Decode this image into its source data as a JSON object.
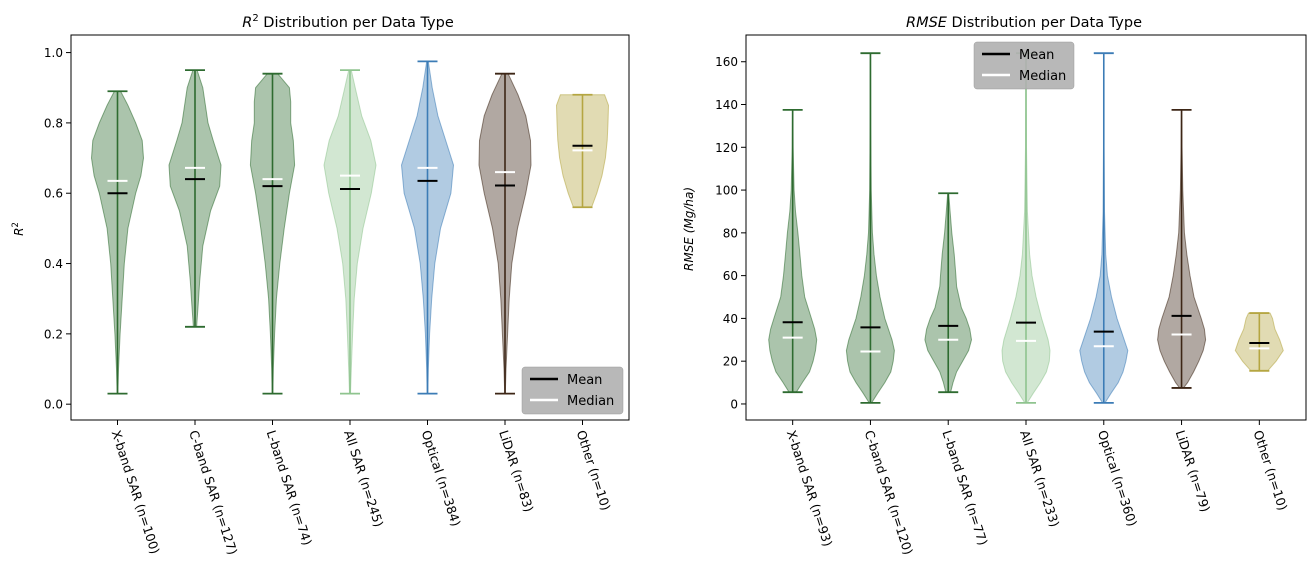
{
  "chart_data": [
    {
      "type": "violin",
      "title": "R² Distribution per Data Type",
      "title_prefix": "R",
      "title_sup": "2",
      "title_suffix": " Distribution per Data Type",
      "ylabel": "R²",
      "ylabel_main": "R",
      "ylabel_sup": "2",
      "ylim": [
        -0.045,
        1.05
      ],
      "yticks": [
        "0.0",
        "0.2",
        "0.4",
        "0.6",
        "0.8",
        "1.0"
      ],
      "legend": {
        "placement": "bottom-right",
        "entries": [
          "Mean",
          "Median"
        ]
      },
      "categories": [
        "X-band SAR (n=100)",
        "C-band SAR (n=127)",
        "L-band SAR (n=74)",
        "All SAR (n=245)",
        "Optical (n=384)",
        "LiDAR (n=83)",
        "Other (n=10)"
      ],
      "series": [
        {
          "color": "#2e6b30",
          "min": 0.03,
          "max": 0.89,
          "mean": 0.6,
          "median": 0.635,
          "profile": [
            [
              0.03,
              0.01
            ],
            [
              0.1,
              0.04
            ],
            [
              0.2,
              0.1
            ],
            [
              0.3,
              0.18
            ],
            [
              0.4,
              0.26
            ],
            [
              0.5,
              0.4
            ],
            [
              0.6,
              0.7
            ],
            [
              0.65,
              0.9
            ],
            [
              0.7,
              1.0
            ],
            [
              0.75,
              0.95
            ],
            [
              0.8,
              0.7
            ],
            [
              0.85,
              0.4
            ],
            [
              0.89,
              0.12
            ]
          ]
        },
        {
          "color": "#2e6b30",
          "min": 0.22,
          "max": 0.95,
          "mean": 0.64,
          "median": 0.672,
          "profile": [
            [
              0.22,
              0.06
            ],
            [
              0.28,
              0.12
            ],
            [
              0.35,
              0.18
            ],
            [
              0.45,
              0.3
            ],
            [
              0.55,
              0.6
            ],
            [
              0.62,
              0.95
            ],
            [
              0.68,
              1.0
            ],
            [
              0.75,
              0.7
            ],
            [
              0.8,
              0.5
            ],
            [
              0.85,
              0.4
            ],
            [
              0.9,
              0.3
            ],
            [
              0.95,
              0.08
            ]
          ]
        },
        {
          "color": "#2e6b30",
          "min": 0.03,
          "max": 0.94,
          "mean": 0.62,
          "median": 0.64,
          "profile": [
            [
              0.03,
              0.01
            ],
            [
              0.1,
              0.03
            ],
            [
              0.2,
              0.08
            ],
            [
              0.3,
              0.15
            ],
            [
              0.4,
              0.28
            ],
            [
              0.5,
              0.45
            ],
            [
              0.6,
              0.65
            ],
            [
              0.68,
              0.85
            ],
            [
              0.75,
              0.8
            ],
            [
              0.8,
              0.7
            ],
            [
              0.86,
              0.7
            ],
            [
              0.9,
              0.65
            ],
            [
              0.94,
              0.2
            ]
          ]
        },
        {
          "color": "#8fc48f",
          "min": 0.03,
          "max": 0.95,
          "mean": 0.612,
          "median": 0.65,
          "profile": [
            [
              0.03,
              0.02
            ],
            [
              0.1,
              0.05
            ],
            [
              0.2,
              0.1
            ],
            [
              0.3,
              0.16
            ],
            [
              0.4,
              0.28
            ],
            [
              0.5,
              0.5
            ],
            [
              0.6,
              0.82
            ],
            [
              0.68,
              1.0
            ],
            [
              0.75,
              0.8
            ],
            [
              0.82,
              0.45
            ],
            [
              0.9,
              0.2
            ],
            [
              0.95,
              0.05
            ]
          ]
        },
        {
          "color": "#3c7cb6",
          "min": 0.03,
          "max": 0.975,
          "mean": 0.635,
          "median": 0.672,
          "profile": [
            [
              0.03,
              0.01
            ],
            [
              0.1,
              0.03
            ],
            [
              0.2,
              0.08
            ],
            [
              0.3,
              0.16
            ],
            [
              0.4,
              0.28
            ],
            [
              0.5,
              0.5
            ],
            [
              0.6,
              0.9
            ],
            [
              0.68,
              1.0
            ],
            [
              0.75,
              0.7
            ],
            [
              0.82,
              0.4
            ],
            [
              0.9,
              0.18
            ],
            [
              0.975,
              0.03
            ]
          ]
        },
        {
          "color": "#3d2616",
          "min": 0.03,
          "max": 0.94,
          "mean": 0.622,
          "median": 0.66,
          "profile": [
            [
              0.03,
              0.01
            ],
            [
              0.1,
              0.04
            ],
            [
              0.2,
              0.1
            ],
            [
              0.3,
              0.16
            ],
            [
              0.4,
              0.26
            ],
            [
              0.5,
              0.48
            ],
            [
              0.6,
              0.8
            ],
            [
              0.68,
              1.0
            ],
            [
              0.75,
              0.98
            ],
            [
              0.82,
              0.8
            ],
            [
              0.88,
              0.5
            ],
            [
              0.94,
              0.12
            ]
          ]
        },
        {
          "color": "#b5a642",
          "min": 0.56,
          "max": 0.88,
          "mean": 0.735,
          "median": 0.722,
          "profile": [
            [
              0.56,
              0.35
            ],
            [
              0.6,
              0.55
            ],
            [
              0.65,
              0.75
            ],
            [
              0.7,
              0.88
            ],
            [
              0.75,
              0.95
            ],
            [
              0.8,
              0.98
            ],
            [
              0.85,
              1.0
            ],
            [
              0.88,
              0.85
            ]
          ]
        }
      ]
    },
    {
      "type": "violin",
      "title": "RMSE Distribution per Data Type",
      "title_italic": "RMSE",
      "title_suffix": " Distribution per Data Type",
      "ylabel": "RMSE (Mg/ha)",
      "ylim": [
        -7.5,
        172.5
      ],
      "yticks": [
        "0",
        "20",
        "40",
        "60",
        "80",
        "100",
        "120",
        "140",
        "160"
      ],
      "legend": {
        "placement": "top-center",
        "entries": [
          "Mean",
          "Median"
        ]
      },
      "categories": [
        "X-band SAR (n=93)",
        "C-band SAR (n=120)",
        "L-band SAR (n=77)",
        "All SAR (n=233)",
        "Optical (n=360)",
        "LiDAR (n=79)",
        "Other (n=10)"
      ],
      "series": [
        {
          "color": "#2e6b30",
          "min": 5.5,
          "max": 137.5,
          "mean": 38.2,
          "median": 31.0,
          "profile": [
            [
              5.5,
              0.15
            ],
            [
              10,
              0.4
            ],
            [
              15,
              0.7
            ],
            [
              20,
              0.85
            ],
            [
              25,
              0.95
            ],
            [
              30,
              1.0
            ],
            [
              35,
              0.92
            ],
            [
              40,
              0.78
            ],
            [
              50,
              0.5
            ],
            [
              60,
              0.38
            ],
            [
              70,
              0.3
            ],
            [
              80,
              0.22
            ],
            [
              90,
              0.12
            ],
            [
              100,
              0.06
            ],
            [
              120,
              0.02
            ],
            [
              137.5,
              0.01
            ]
          ]
        },
        {
          "color": "#2e6b30",
          "min": 0.5,
          "max": 164.0,
          "mean": 35.8,
          "median": 24.5,
          "profile": [
            [
              0.5,
              0.05
            ],
            [
              5,
              0.3
            ],
            [
              10,
              0.6
            ],
            [
              15,
              0.85
            ],
            [
              20,
              0.95
            ],
            [
              25,
              1.0
            ],
            [
              30,
              0.9
            ],
            [
              40,
              0.6
            ],
            [
              50,
              0.4
            ],
            [
              60,
              0.25
            ],
            [
              70,
              0.15
            ],
            [
              80,
              0.08
            ],
            [
              100,
              0.03
            ],
            [
              130,
              0.01
            ],
            [
              164,
              0.005
            ]
          ]
        },
        {
          "color": "#2e6b30",
          "min": 5.5,
          "max": 98.5,
          "mean": 36.5,
          "median": 30.0,
          "profile": [
            [
              5.5,
              0.1
            ],
            [
              10,
              0.2
            ],
            [
              15,
              0.35
            ],
            [
              20,
              0.6
            ],
            [
              25,
              0.85
            ],
            [
              30,
              0.97
            ],
            [
              35,
              0.9
            ],
            [
              40,
              0.75
            ],
            [
              45,
              0.55
            ],
            [
              55,
              0.35
            ],
            [
              60,
              0.32
            ],
            [
              70,
              0.25
            ],
            [
              80,
              0.15
            ],
            [
              90,
              0.08
            ],
            [
              98.5,
              0.02
            ]
          ]
        },
        {
          "color": "#8fc48f",
          "min": 0.5,
          "max": 164.0,
          "mean": 38.0,
          "median": 29.5,
          "profile": [
            [
              0.5,
              0.05
            ],
            [
              5,
              0.3
            ],
            [
              10,
              0.6
            ],
            [
              15,
              0.85
            ],
            [
              20,
              0.97
            ],
            [
              25,
              1.0
            ],
            [
              30,
              0.92
            ],
            [
              40,
              0.65
            ],
            [
              50,
              0.42
            ],
            [
              60,
              0.25
            ],
            [
              70,
              0.15
            ],
            [
              90,
              0.06
            ],
            [
              120,
              0.02
            ],
            [
              164,
              0.005
            ]
          ]
        },
        {
          "color": "#3c7cb6",
          "min": 0.5,
          "max": 164.0,
          "mean": 33.8,
          "median": 27.0,
          "profile": [
            [
              0.5,
              0.05
            ],
            [
              5,
              0.3
            ],
            [
              10,
              0.6
            ],
            [
              15,
              0.8
            ],
            [
              20,
              0.92
            ],
            [
              25,
              1.0
            ],
            [
              30,
              0.85
            ],
            [
              40,
              0.55
            ],
            [
              50,
              0.32
            ],
            [
              60,
              0.15
            ],
            [
              70,
              0.08
            ],
            [
              90,
              0.03
            ],
            [
              120,
              0.01
            ],
            [
              164,
              0.005
            ]
          ]
        },
        {
          "color": "#3d2616",
          "min": 7.5,
          "max": 137.5,
          "mean": 41.2,
          "median": 32.5,
          "profile": [
            [
              7.5,
              0.08
            ],
            [
              10,
              0.25
            ],
            [
              15,
              0.5
            ],
            [
              20,
              0.72
            ],
            [
              25,
              0.9
            ],
            [
              30,
              1.0
            ],
            [
              35,
              0.95
            ],
            [
              40,
              0.82
            ],
            [
              50,
              0.52
            ],
            [
              60,
              0.35
            ],
            [
              70,
              0.22
            ],
            [
              80,
              0.12
            ],
            [
              100,
              0.05
            ],
            [
              120,
              0.02
            ],
            [
              137.5,
              0.005
            ]
          ]
        },
        {
          "color": "#b5a642",
          "min": 15.5,
          "max": 42.5,
          "mean": 28.5,
          "median": 26.0,
          "profile": [
            [
              15.5,
              0.35
            ],
            [
              20,
              0.7
            ],
            [
              25,
              1.0
            ],
            [
              30,
              0.85
            ],
            [
              35,
              0.65
            ],
            [
              40,
              0.55
            ],
            [
              42.5,
              0.45
            ]
          ]
        }
      ]
    }
  ]
}
